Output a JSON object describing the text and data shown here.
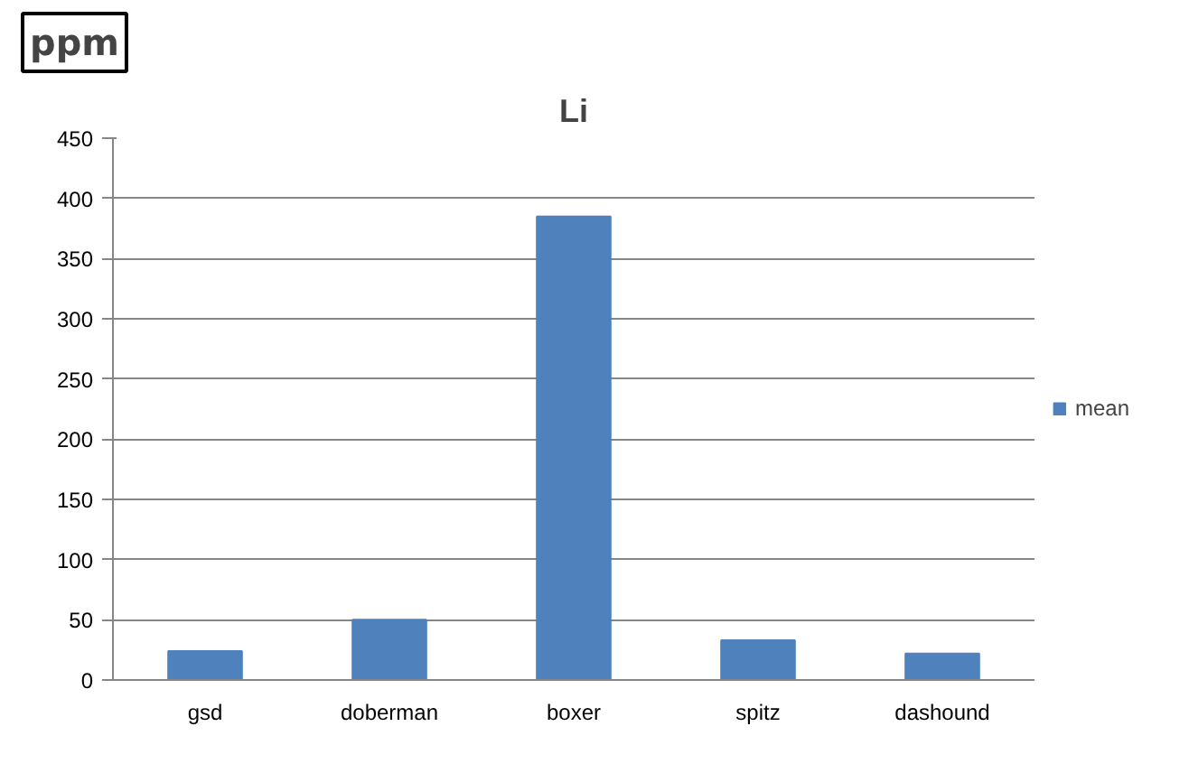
{
  "chart_data": {
    "type": "bar",
    "title": "Li",
    "ylabel": "ppm",
    "categories": [
      "gsd",
      "doberman",
      "boxer",
      "spitz",
      "dashound"
    ],
    "series": [
      {
        "name": "mean",
        "color": "#4f81bd",
        "values": [
          24,
          50,
          385,
          33,
          22
        ]
      }
    ],
    "ylim": [
      0,
      450
    ],
    "yticks": [
      0,
      50,
      100,
      150,
      200,
      250,
      300,
      350,
      400,
      450
    ],
    "grid": "y",
    "legend": "right"
  }
}
